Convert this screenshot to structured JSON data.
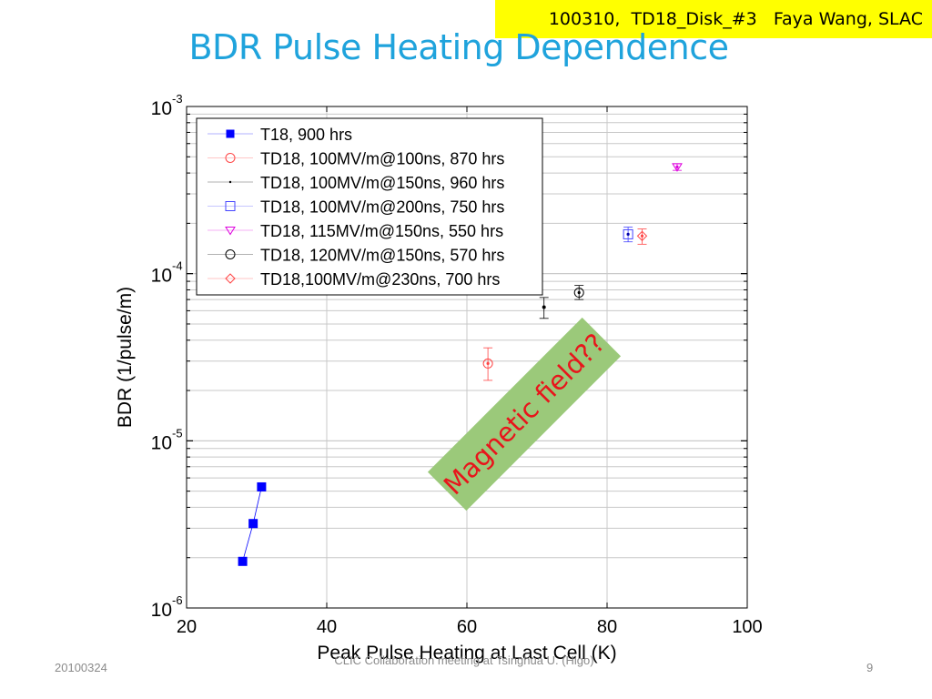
{
  "slide": {
    "title": "BDR Pulse Heating Dependence",
    "banner": "100310,  TD18_Disk_#3   Faya Wang, SLAC",
    "footer_date": "20100324",
    "footer_center": "CLIC Collaboration meeting at Tsinghua U. (Higo)",
    "page_number": "9",
    "annotation": "Magnetic field??",
    "annotation_color": "#e8151b",
    "annotation_bg": "#9bc97a"
  },
  "chart_data": {
    "type": "scatter",
    "title": "",
    "xlabel": "Peak Pulse Heating at Last Cell (K)",
    "ylabel": "BDR (1/pulse/m)",
    "xlim": [
      20,
      100
    ],
    "ylim": [
      1e-06,
      0.001
    ],
    "yscale": "log",
    "grid": true,
    "legend_position": "top-left",
    "x_ticks": [
      "20",
      "40",
      "60",
      "80",
      "100"
    ],
    "y_ticks": [
      {
        "base": "10",
        "exp": "-3",
        "value": 0.001
      },
      {
        "base": "10",
        "exp": "-4",
        "value": 0.0001
      },
      {
        "base": "10",
        "exp": "-5",
        "value": 1e-05
      },
      {
        "base": "10",
        "exp": "-6",
        "value": 1e-06
      }
    ],
    "series": [
      {
        "name": "T18, 900 hrs",
        "marker": "square-filled",
        "color": "#0000ff",
        "line": true,
        "points": [
          {
            "x": 28,
            "y": 1.9e-06
          },
          {
            "x": 29.5,
            "y": 3.2e-06
          },
          {
            "x": 30.7,
            "y": 5.3e-06
          }
        ]
      },
      {
        "name": "TD18, 100MV/m@100ns, 870 hrs",
        "marker": "circle",
        "color": "#ff4444",
        "line": false,
        "points": [
          {
            "x": 63,
            "y": 2.9e-05,
            "err_lo": 2.3e-05,
            "err_hi": 3.6e-05
          }
        ]
      },
      {
        "name": "TD18, 100MV/m@150ns, 960 hrs",
        "marker": "dot",
        "color": "#000000",
        "line": false,
        "points": [
          {
            "x": 71,
            "y": 6.3e-05,
            "err_lo": 5.4e-05,
            "err_hi": 7.2e-05
          }
        ]
      },
      {
        "name": "TD18, 100MV/m@200ns, 750 hrs",
        "marker": "square",
        "color": "#4444ff",
        "line": false,
        "points": [
          {
            "x": 83,
            "y": 0.000172,
            "err_lo": 0.000155,
            "err_hi": 0.00019
          }
        ]
      },
      {
        "name": "TD18, 115MV/m@150ns, 550 hrs",
        "marker": "triangle-down",
        "color": "#dd00dd",
        "line": false,
        "points": [
          {
            "x": 90,
            "y": 0.000435,
            "err_lo": 0.000415,
            "err_hi": 0.000455
          }
        ]
      },
      {
        "name": "TD18, 120MV/m@150ns, 570 hrs",
        "marker": "circle",
        "color": "#000000",
        "line": false,
        "points": [
          {
            "x": 76,
            "y": 7.7e-05,
            "err_lo": 7e-05,
            "err_hi": 8.5e-05
          }
        ]
      },
      {
        "name": "TD18,100MV/m@230ns, 700 hrs",
        "marker": "diamond",
        "color": "#ff4444",
        "line": false,
        "points": [
          {
            "x": 85,
            "y": 0.000168,
            "err_lo": 0.00015,
            "err_hi": 0.000185
          }
        ]
      }
    ]
  }
}
